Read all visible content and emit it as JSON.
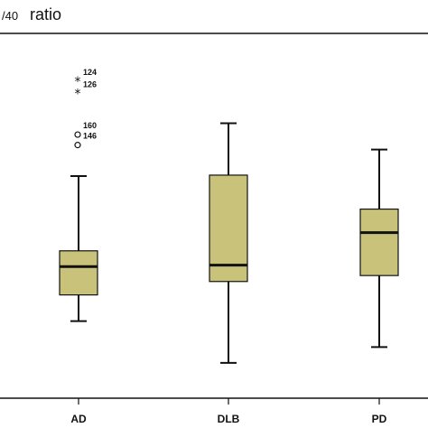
{
  "chart_data": {
    "type": "box",
    "title_prefix": "/40",
    "title": "ratio",
    "categories": [
      "AD",
      "DLB",
      "PD"
    ],
    "box_color": "#c8c27a",
    "ylim": [
      0,
      100
    ],
    "series": [
      {
        "category": "AD",
        "whisker_low": 19.5,
        "q1": 28.3,
        "median": 37.8,
        "q3": 43.1,
        "whisker_high": 68.2,
        "outliers": [
          {
            "label": "124",
            "value": 100.0,
            "marker": "star"
          },
          {
            "label": "126",
            "value": 95.9,
            "marker": "star"
          },
          {
            "label": "160",
            "value": 82.1,
            "marker": "circle"
          },
          {
            "label": "146",
            "value": 78.6,
            "marker": "circle"
          }
        ]
      },
      {
        "category": "DLB",
        "whisker_low": 5.5,
        "q1": 32.8,
        "median": 38.3,
        "q3": 68.5,
        "whisker_high": 85.9,
        "outliers": []
      },
      {
        "category": "PD",
        "whisker_low": 10.8,
        "q1": 34.8,
        "median": 49.2,
        "q3": 57.1,
        "whisker_high": 77.1,
        "outliers": []
      }
    ]
  }
}
